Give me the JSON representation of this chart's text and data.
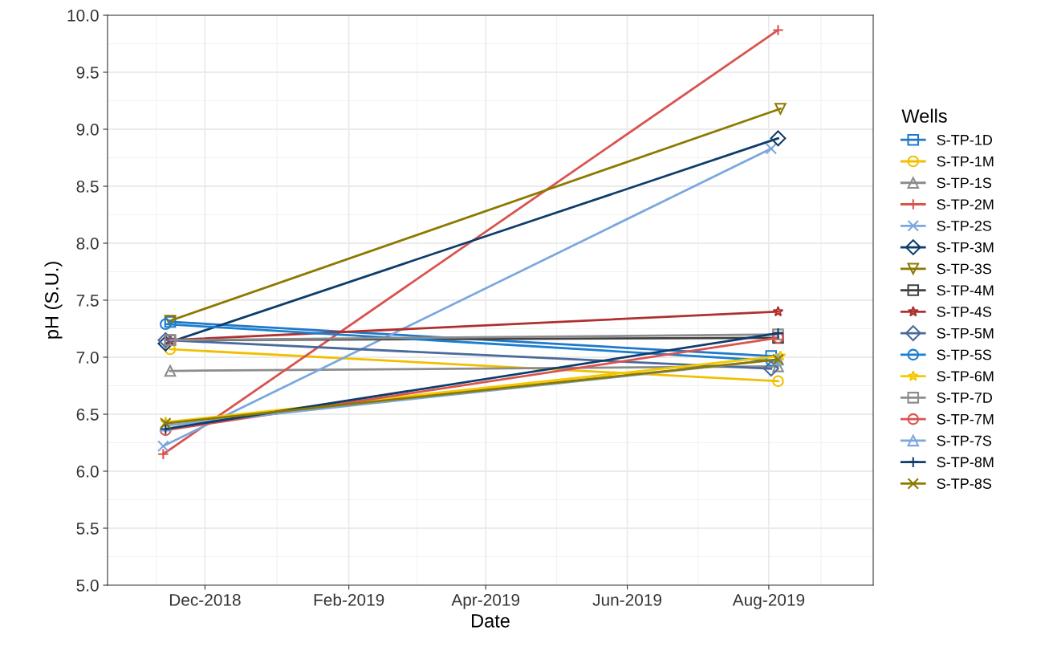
{
  "chart_data": {
    "type": "line",
    "xlabel": "Date",
    "ylabel": "pH (S.U.)",
    "legend_title": "Wells",
    "legend": "right",
    "grid": true,
    "xlim": [
      "2018-10-20",
      "2019-09-15"
    ],
    "xticks": [
      {
        "value": "2018-12-01",
        "label": "Dec-2018"
      },
      {
        "value": "2019-02-01",
        "label": "Feb-2019"
      },
      {
        "value": "2019-04-01",
        "label": "Apr-2019"
      },
      {
        "value": "2019-06-01",
        "label": "Jun-2019"
      },
      {
        "value": "2019-08-01",
        "label": "Aug-2019"
      }
    ],
    "ylim": [
      5.0,
      10.0
    ],
    "yticks": [
      {
        "value": 5.0,
        "label": "5.0"
      },
      {
        "value": 5.5,
        "label": "5.5"
      },
      {
        "value": 6.0,
        "label": "6.0"
      },
      {
        "value": 6.5,
        "label": "6.5"
      },
      {
        "value": 7.0,
        "label": "7.0"
      },
      {
        "value": 7.5,
        "label": "7.5"
      },
      {
        "value": 8.0,
        "label": "8.0"
      },
      {
        "value": 8.5,
        "label": "8.5"
      },
      {
        "value": 9.0,
        "label": "9.0"
      },
      {
        "value": 9.5,
        "label": "9.5"
      },
      {
        "value": 10.0,
        "label": "10.0"
      }
    ],
    "series": [
      {
        "name": "S-TP-1D",
        "color": "#1f78c8",
        "marker": "square",
        "x": [
          "2018-11-16",
          "2019-08-02"
        ],
        "values": [
          7.31,
          7.01
        ]
      },
      {
        "name": "S-TP-1M",
        "color": "#f0c000",
        "marker": "circle",
        "x": [
          "2018-11-16",
          "2019-08-05"
        ],
        "values": [
          7.07,
          6.79
        ]
      },
      {
        "name": "S-TP-1S",
        "color": "#8c8c8c",
        "marker": "triangle",
        "x": [
          "2018-11-16",
          "2019-08-05"
        ],
        "values": [
          6.88,
          6.92
        ]
      },
      {
        "name": "S-TP-2M",
        "color": "#d9534f",
        "marker": "plus",
        "x": [
          "2018-11-13",
          "2019-08-05"
        ],
        "values": [
          6.15,
          9.87
        ]
      },
      {
        "name": "S-TP-2S",
        "color": "#7ba7de",
        "marker": "x",
        "x": [
          "2018-11-13",
          "2019-08-02"
        ],
        "values": [
          6.22,
          8.83
        ]
      },
      {
        "name": "S-TP-3M",
        "color": "#0e3d6b",
        "marker": "diamond",
        "x": [
          "2018-11-14",
          "2019-08-05"
        ],
        "values": [
          7.12,
          8.92
        ]
      },
      {
        "name": "S-TP-3S",
        "color": "#8c7a00",
        "marker": "triangle_down",
        "x": [
          "2018-11-16",
          "2019-08-06"
        ],
        "values": [
          7.32,
          9.18
        ]
      },
      {
        "name": "S-TP-4M",
        "color": "#404040",
        "marker": "square_x",
        "x": [
          "2018-11-16",
          "2019-08-05"
        ],
        "values": [
          7.15,
          7.17
        ]
      },
      {
        "name": "S-TP-4S",
        "color": "#b03030",
        "marker": "star",
        "x": [
          "2018-11-16",
          "2019-08-05"
        ],
        "values": [
          7.15,
          7.4
        ]
      },
      {
        "name": "S-TP-5M",
        "color": "#4a6a9a",
        "marker": "diamond_plus",
        "x": [
          "2018-11-14",
          "2019-08-02"
        ],
        "values": [
          7.15,
          6.9
        ]
      },
      {
        "name": "S-TP-5S",
        "color": "#1a7fd0",
        "marker": "circle_plus",
        "x": [
          "2018-11-14",
          "2019-08-02"
        ],
        "values": [
          7.29,
          6.97
        ]
      },
      {
        "name": "S-TP-6M",
        "color": "#f5c800",
        "marker": "star",
        "x": [
          "2018-11-14",
          "2019-08-06"
        ],
        "values": [
          6.43,
          7.01
        ]
      },
      {
        "name": "S-TP-7D",
        "color": "#8c8c8c",
        "marker": "square",
        "x": [
          "2018-11-16",
          "2019-08-05"
        ],
        "values": [
          7.15,
          7.2
        ]
      },
      {
        "name": "S-TP-7M",
        "color": "#d9534f",
        "marker": "circle",
        "x": [
          "2018-11-14",
          "2019-08-05"
        ],
        "values": [
          6.36,
          7.17
        ]
      },
      {
        "name": "S-TP-7S",
        "color": "#7ba7de",
        "marker": "triangle",
        "x": [
          "2018-11-14",
          "2019-08-05"
        ],
        "values": [
          6.4,
          6.98
        ]
      },
      {
        "name": "S-TP-8M",
        "color": "#0e3d6b",
        "marker": "plus",
        "x": [
          "2018-11-14",
          "2019-08-05"
        ],
        "values": [
          6.37,
          7.21
        ]
      },
      {
        "name": "S-TP-8S",
        "color": "#8c7a00",
        "marker": "x",
        "x": [
          "2018-11-14",
          "2019-08-05"
        ],
        "values": [
          6.42,
          6.98
        ]
      }
    ]
  }
}
